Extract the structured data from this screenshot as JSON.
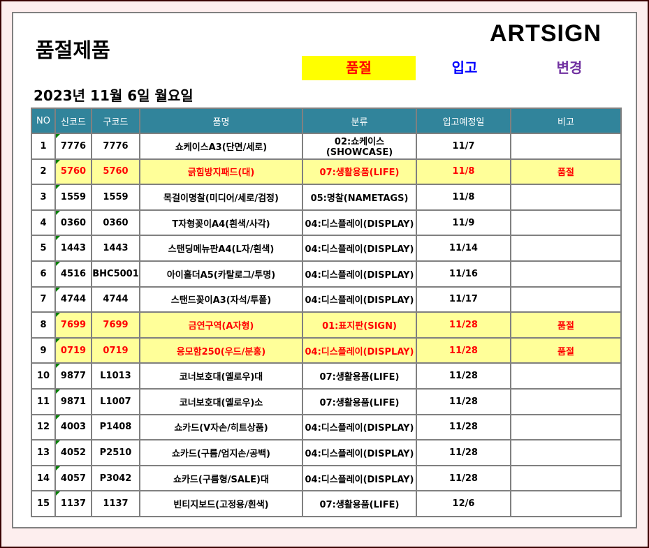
{
  "title": "품절제품",
  "logo": "ARTSIGN",
  "buttons": {
    "soldout": "품절",
    "incoming": "입고",
    "change": "변경"
  },
  "date": "2023년 11월 6일 월요일",
  "columns": [
    "NO",
    "신코드",
    "구코드",
    "품명",
    "분류",
    "입고예정일",
    "비고"
  ],
  "rows": [
    {
      "no": "1",
      "new": "7776",
      "old": "7776",
      "name": "쇼케이스A3(단면/세로)",
      "cat": "02:쇼케이스(SHOWCASE)",
      "date": "11/7",
      "note": "",
      "soldout": false
    },
    {
      "no": "2",
      "new": "5760",
      "old": "5760",
      "name": "긁힘방지패드(대)",
      "cat": "07:생활용품(LIFE)",
      "date": "11/8",
      "note": "품절",
      "soldout": true
    },
    {
      "no": "3",
      "new": "1559",
      "old": "1559",
      "name": "목걸이명찰(미디어/세로/검정)",
      "cat": "05:명찰(NAMETAGS)",
      "date": "11/8",
      "note": "",
      "soldout": false
    },
    {
      "no": "4",
      "new": "0360",
      "old": "0360",
      "name": "T자형꽂이A4(흰색/사각)",
      "cat": "04:디스플레이(DISPLAY)",
      "date": "11/9",
      "note": "",
      "soldout": false
    },
    {
      "no": "5",
      "new": "1443",
      "old": "1443",
      "name": "스탠딩메뉴판A4(L자/흰색)",
      "cat": "04:디스플레이(DISPLAY)",
      "date": "11/14",
      "note": "",
      "soldout": false
    },
    {
      "no": "6",
      "new": "4516",
      "old": "BHC5001",
      "name": "아이홀더A5(카탈로그/투명)",
      "cat": "04:디스플레이(DISPLAY)",
      "date": "11/16",
      "note": "",
      "soldout": false
    },
    {
      "no": "7",
      "new": "4744",
      "old": "4744",
      "name": "스탠드꽂이A3(자석/투폴)",
      "cat": "04:디스플레이(DISPLAY)",
      "date": "11/17",
      "note": "",
      "soldout": false
    },
    {
      "no": "8",
      "new": "7699",
      "old": "7699",
      "name": "금연구역(A자형)",
      "cat": "01:표지판(SIGN)",
      "date": "11/28",
      "note": "품절",
      "soldout": true
    },
    {
      "no": "9",
      "new": "0719",
      "old": "0719",
      "name": "응모함250(우드/분홍)",
      "cat": "04:디스플레이(DISPLAY)",
      "date": "11/28",
      "note": "품절",
      "soldout": true
    },
    {
      "no": "10",
      "new": "9877",
      "old": "L1013",
      "name": "코너보호대(옐로우)대",
      "cat": "07:생활용품(LIFE)",
      "date": "11/28",
      "note": "",
      "soldout": false
    },
    {
      "no": "11",
      "new": "9871",
      "old": "L1007",
      "name": "코너보호대(옐로우)소",
      "cat": "07:생활용품(LIFE)",
      "date": "11/28",
      "note": "",
      "soldout": false
    },
    {
      "no": "12",
      "new": "4003",
      "old": "P1408",
      "name": "쇼카드(V자손/히트상품)",
      "cat": "04:디스플레이(DISPLAY)",
      "date": "11/28",
      "note": "",
      "soldout": false
    },
    {
      "no": "13",
      "new": "4052",
      "old": "P2510",
      "name": "쇼카드(구름/엄지손/공백)",
      "cat": "04:디스플레이(DISPLAY)",
      "date": "11/28",
      "note": "",
      "soldout": false
    },
    {
      "no": "14",
      "new": "4057",
      "old": "P3042",
      "name": "쇼카드(구름형/SALE)대",
      "cat": "04:디스플레이(DISPLAY)",
      "date": "11/28",
      "note": "",
      "soldout": false
    },
    {
      "no": "15",
      "new": "1137",
      "old": "1137",
      "name": "빈티지보드(고정용/흰색)",
      "cat": "07:생활용품(LIFE)",
      "date": "12/6",
      "note": "",
      "soldout": false
    }
  ],
  "colors": {
    "header": "#31849b",
    "soldout_row": "#ffff99",
    "soldout_text": "#ff0000",
    "accent_button": "#ffff00"
  }
}
